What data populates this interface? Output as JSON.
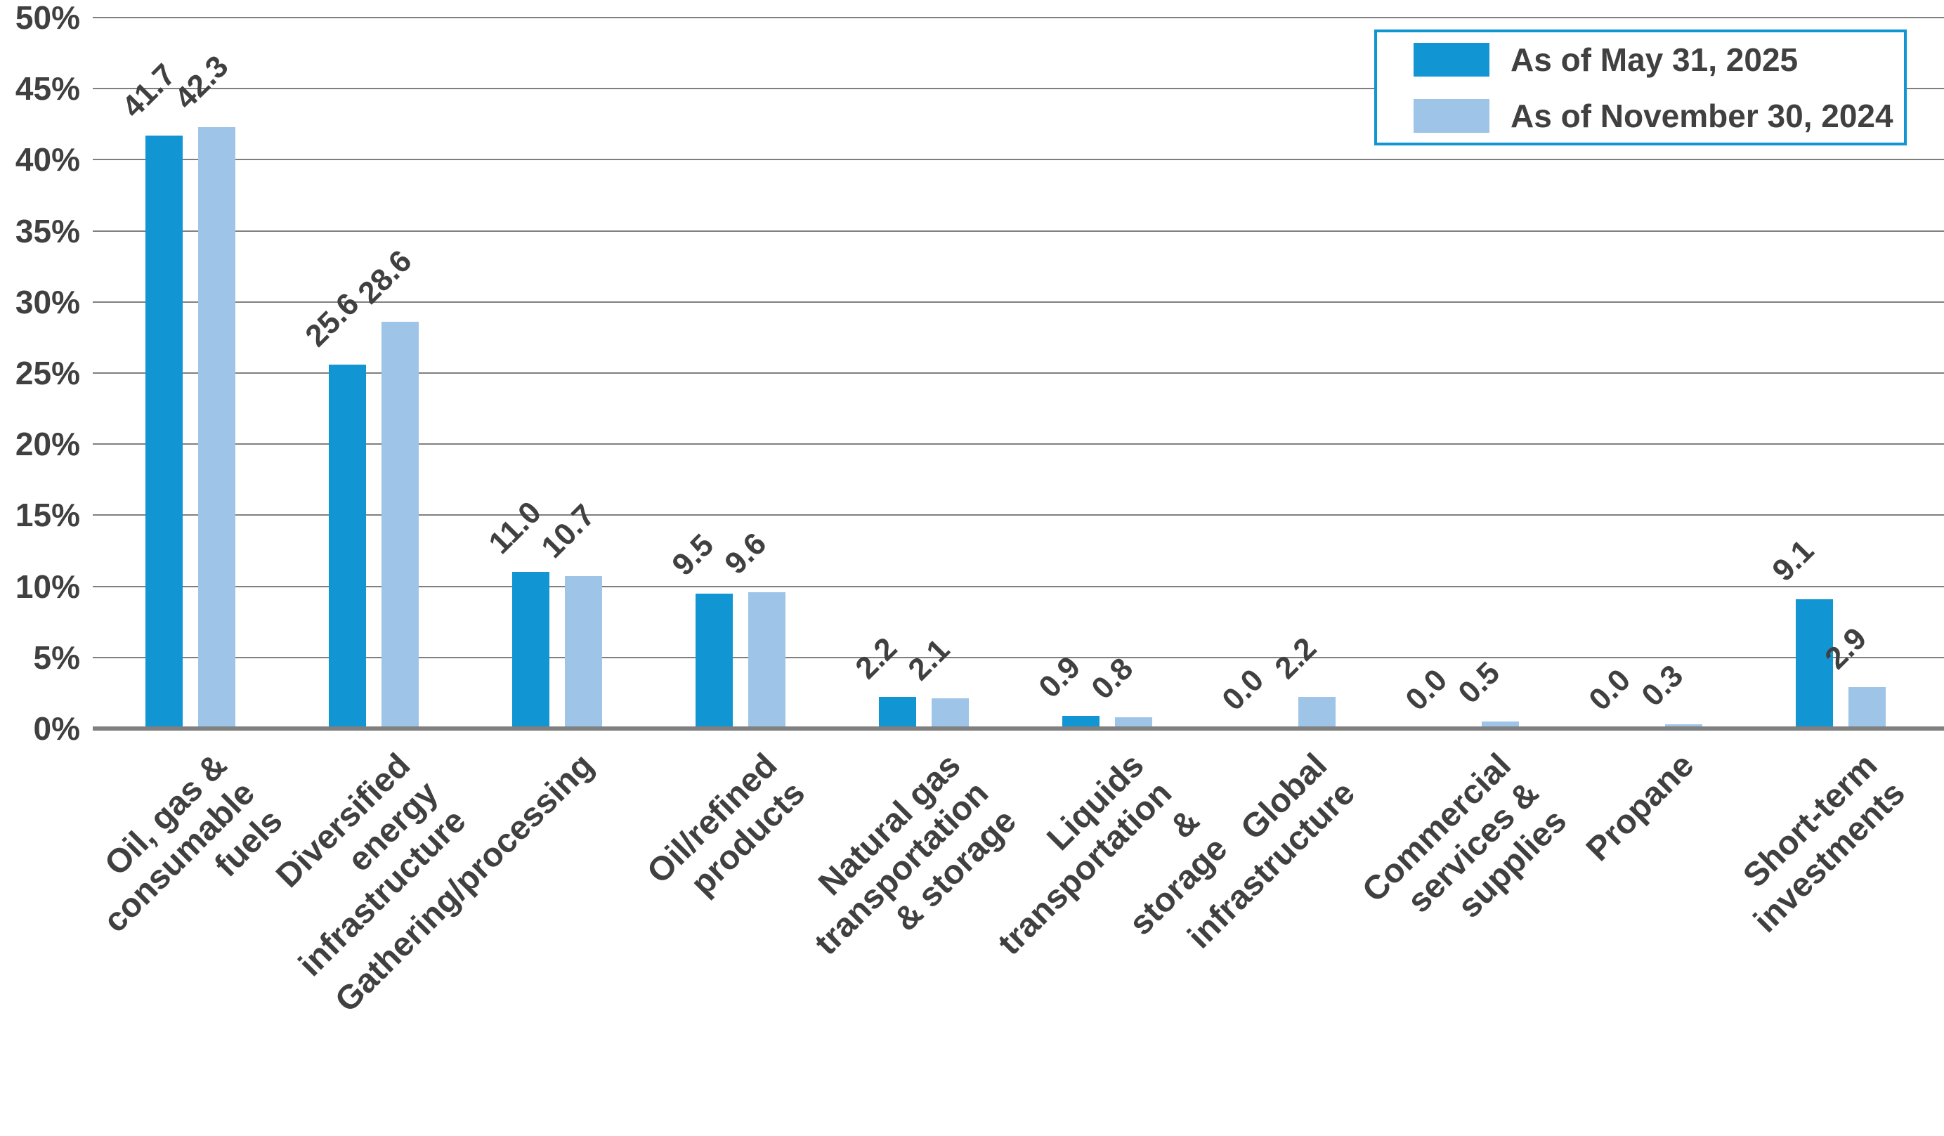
{
  "chart_data": {
    "type": "bar",
    "title": "",
    "xlabel": "",
    "ylabel": "",
    "ylim": [
      0,
      50
    ],
    "grid": "horizontal-5pct-steps",
    "legend_position": "top-right",
    "value_labels": "shown above bars, one decimal, rotated 45deg",
    "y_ticks": [
      "0%",
      "5%",
      "10%",
      "15%",
      "20%",
      "25%",
      "30%",
      "35%",
      "40%",
      "45%",
      "50%"
    ],
    "categories": [
      "Oil, gas &\nconsumable fuels",
      "Diversified energy\ninfrastructure",
      "Gathering/processing",
      "Oil/refined products",
      "Natural gas\ntransportation & storage",
      "Liquids transportation &\nstorage",
      "Global infrastructure",
      "Commercial services &\nsupplies",
      "Propane",
      "Short-term investments"
    ],
    "series": [
      {
        "name": "As of May 31, 2025",
        "color": "#1295d3",
        "values": [
          41.7,
          25.6,
          11.0,
          9.5,
          2.2,
          0.9,
          0.0,
          0.0,
          0.0,
          9.1
        ]
      },
      {
        "name": "As of November 30, 2024",
        "color": "#9ec4e7",
        "values": [
          42.3,
          28.6,
          10.7,
          9.6,
          2.1,
          0.8,
          2.2,
          0.5,
          0.3,
          2.9
        ]
      }
    ]
  },
  "styles": {
    "gridline_color": "#7f7f7f",
    "axis_color": "#808080",
    "text_color": "#404040",
    "legend_border_color": "#1295d3"
  }
}
